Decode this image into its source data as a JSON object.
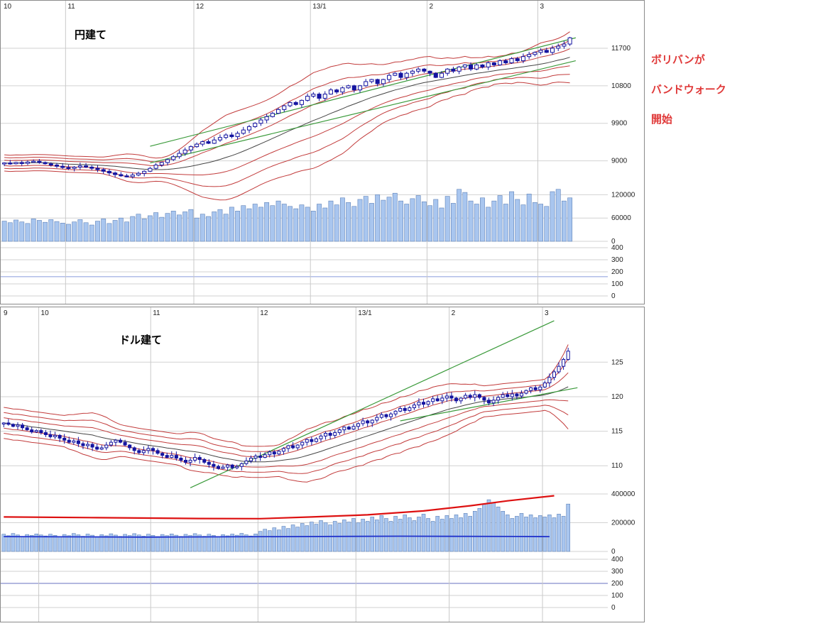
{
  "annotation": {
    "lines": [
      "ボリバンが",
      "バンドウォーク",
      "開始"
    ],
    "color": "#e03a3a"
  },
  "chart_data": [
    {
      "type": "candlestick",
      "title": "円建て",
      "slots": 104,
      "months": [
        {
          "label": "10",
          "index": 0
        },
        {
          "label": "11",
          "index": 11
        },
        {
          "label": "12",
          "index": 33
        },
        {
          "label": "13/1",
          "index": 53
        },
        {
          "label": "2",
          "index": 73
        },
        {
          "label": "3",
          "index": 92
        }
      ],
      "price_ticks": [
        11700,
        10800,
        9900,
        9000
      ],
      "price_range": [
        8500,
        12550
      ],
      "volume_ticks": [
        120000,
        60000,
        0
      ],
      "volume_range": [
        0,
        150000
      ],
      "indicator_ticks": [
        400,
        300,
        200,
        100,
        0
      ],
      "indicator_lines": [
        {
          "value": 160,
          "color": "#a9b6e4"
        }
      ],
      "sigma_floor": 65,
      "wick": 70,
      "band_color": "#c23b3b",
      "ma_color": "#444444",
      "trend_color": "#3a9a3a",
      "candle_color": "#1414a0",
      "volume_fill": "#a9c6ef",
      "volume_stroke": "#5f82b8",
      "close": [
        8950,
        8930,
        8960,
        8940,
        8970,
        8990,
        8960,
        8930,
        8900,
        8870,
        8840,
        8820,
        8850,
        8880,
        8850,
        8820,
        8790,
        8750,
        8710,
        8670,
        8640,
        8620,
        8660,
        8700,
        8750,
        8820,
        8900,
        8960,
        9030,
        9100,
        9180,
        9260,
        9340,
        9400,
        9460,
        9420,
        9500,
        9560,
        9620,
        9580,
        9660,
        9740,
        9820,
        9900,
        9980,
        10060,
        10140,
        10230,
        10320,
        10400,
        10350,
        10450,
        10550,
        10600,
        10500,
        10600,
        10700,
        10650,
        10750,
        10800,
        10700,
        10800,
        10900,
        10950,
        10850,
        10950,
        11050,
        11100,
        11000,
        11100,
        11150,
        11200,
        11150,
        11100,
        11000,
        11100,
        11200,
        11150,
        11250,
        11300,
        11200,
        11300,
        11250,
        11350,
        11300,
        11400,
        11350,
        11450,
        11400,
        11500,
        11550,
        11600,
        11650,
        11600,
        11700,
        11750,
        11800,
        11950
      ],
      "volume": [
        52000,
        48000,
        55000,
        50000,
        46000,
        58000,
        54000,
        49000,
        56000,
        51000,
        47000,
        44000,
        50000,
        56000,
        48000,
        42000,
        52000,
        58000,
        46000,
        54000,
        60000,
        50000,
        64000,
        70000,
        58000,
        66000,
        74000,
        62000,
        72000,
        78000,
        68000,
        76000,
        82000,
        60000,
        70000,
        64000,
        76000,
        82000,
        70000,
        88000,
        78000,
        92000,
        84000,
        96000,
        88000,
        100000,
        92000,
        104000,
        96000,
        90000,
        84000,
        94000,
        88000,
        78000,
        96000,
        86000,
        104000,
        94000,
        112000,
        100000,
        90000,
        108000,
        116000,
        98000,
        120000,
        106000,
        114000,
        124000,
        104000,
        96000,
        110000,
        118000,
        102000,
        92000,
        108000,
        86000,
        116000,
        98000,
        134000,
        126000,
        104000,
        96000,
        112000,
        88000,
        104000,
        118000,
        96000,
        128000,
        108000,
        94000,
        122000,
        100000,
        96000,
        90000,
        128000,
        134000,
        104000,
        112000
      ],
      "trendlines": [
        {
          "from": [
            25,
            9350
          ],
          "to": [
            98,
            11950
          ]
        },
        {
          "from": [
            25,
            8950
          ],
          "to": [
            98,
            11400
          ]
        }
      ]
    },
    {
      "type": "candlestick",
      "title": "ドル建て",
      "slots": 130,
      "months": [
        {
          "label": "9",
          "index": 0
        },
        {
          "label": "10",
          "index": 8
        },
        {
          "label": "11",
          "index": 32
        },
        {
          "label": "12",
          "index": 55
        },
        {
          "label": "13/1",
          "index": 76
        },
        {
          "label": "2",
          "index": 96
        },
        {
          "label": "3",
          "index": 116
        }
      ],
      "price_ticks": [
        125,
        120,
        115,
        110
      ],
      "price_range": [
        105.5,
        131.2
      ],
      "volume_ticks": [
        400000,
        200000,
        0
      ],
      "volume_range": [
        0,
        410000
      ],
      "indicator_ticks": [
        400,
        300,
        200,
        100,
        0
      ],
      "indicator_lines": [
        {
          "value": 200,
          "color": "#9aa0d6"
        }
      ],
      "sigma_floor": 0.75,
      "wick": 0.55,
      "band_color": "#c23b3b",
      "ma_color": "#444444",
      "trend_color": "#3a9a3a",
      "candle_color": "#1414a0",
      "volume_fill": "#a9c6ef",
      "volume_stroke": "#5f82b8",
      "close": [
        116.2,
        116.0,
        115.7,
        115.9,
        115.5,
        115.2,
        114.9,
        115.1,
        114.8,
        114.5,
        114.2,
        114.4,
        114.0,
        113.7,
        113.4,
        113.6,
        113.2,
        112.9,
        113.1,
        112.7,
        112.4,
        112.6,
        113.0,
        113.4,
        113.7,
        113.4,
        113.0,
        112.6,
        112.2,
        111.9,
        112.2,
        112.5,
        112.2,
        111.8,
        111.5,
        111.2,
        111.5,
        111.1,
        110.8,
        110.5,
        110.8,
        111.2,
        110.9,
        110.5,
        110.2,
        109.9,
        109.6,
        109.8,
        110.1,
        109.7,
        109.9,
        110.3,
        110.7,
        111.1,
        111.4,
        111.2,
        111.6,
        112.0,
        111.7,
        112.1,
        112.5,
        112.9,
        112.6,
        113.0,
        113.4,
        113.8,
        113.5,
        113.9,
        114.3,
        114.7,
        114.4,
        114.8,
        115.2,
        115.6,
        115.3,
        115.7,
        116.1,
        116.5,
        116.2,
        116.6,
        117.0,
        117.4,
        117.1,
        117.5,
        117.9,
        118.3,
        118.0,
        118.4,
        118.8,
        119.2,
        118.9,
        119.3,
        119.7,
        119.4,
        119.8,
        120.1,
        119.8,
        119.4,
        119.8,
        120.2,
        119.9,
        120.3,
        119.9,
        119.5,
        119.1,
        119.5,
        119.9,
        120.3,
        120.0,
        120.4,
        120.1,
        120.5,
        120.9,
        121.3,
        121.0,
        121.4,
        122.0,
        122.8,
        123.6,
        124.4,
        125.4,
        126.6
      ],
      "volume": [
        120000,
        110000,
        125000,
        115000,
        105000,
        118000,
        112000,
        122000,
        115000,
        108000,
        120000,
        112000,
        104000,
        118000,
        110000,
        125000,
        116000,
        106000,
        121000,
        113000,
        103000,
        117000,
        109000,
        123000,
        114000,
        105000,
        119000,
        111000,
        124000,
        115000,
        107000,
        120000,
        112000,
        104000,
        118000,
        110000,
        122000,
        113000,
        105000,
        119000,
        111000,
        124000,
        115000,
        106000,
        120000,
        112000,
        103000,
        117000,
        109000,
        121000,
        113000,
        126000,
        116000,
        108000,
        122000,
        140000,
        155000,
        145000,
        165000,
        150000,
        175000,
        160000,
        185000,
        170000,
        195000,
        180000,
        205000,
        190000,
        215000,
        200000,
        185000,
        210000,
        195000,
        220000,
        205000,
        230000,
        200000,
        225000,
        210000,
        240000,
        220000,
        250000,
        230000,
        210000,
        245000,
        225000,
        255000,
        235000,
        215000,
        240000,
        260000,
        230000,
        210000,
        245000,
        225000,
        250000,
        230000,
        255000,
        235000,
        265000,
        245000,
        280000,
        300000,
        330000,
        360000,
        340000,
        310000,
        280000,
        255000,
        230000,
        245000,
        265000,
        240000,
        255000,
        235000,
        250000,
        240000,
        255000,
        235000,
        260000,
        245000,
        330000
      ],
      "trendlines": [
        {
          "from": [
            40,
            106.8
          ],
          "to": [
            118,
            131.0
          ]
        },
        {
          "from": [
            85,
            116.5
          ],
          "to": [
            123,
            121.3
          ]
        }
      ],
      "volume_lines": [
        {
          "color": "#dd1111",
          "width": 2.2,
          "points": [
            [
              0,
              240000
            ],
            [
              20,
              235000
            ],
            [
              42,
              229000
            ],
            [
              55,
              228000
            ],
            [
              66,
              240000
            ],
            [
              78,
              255000
            ],
            [
              90,
              282000
            ],
            [
              100,
              318000
            ],
            [
              108,
              352000
            ],
            [
              118,
              388000
            ]
          ]
        },
        {
          "color": "#2233cc",
          "width": 1.8,
          "points": [
            [
              0,
              103000
            ],
            [
              30,
              100000
            ],
            [
              60,
              103000
            ],
            [
              85,
              106000
            ],
            [
              110,
              104000
            ],
            [
              117,
              103000
            ]
          ]
        }
      ]
    }
  ]
}
